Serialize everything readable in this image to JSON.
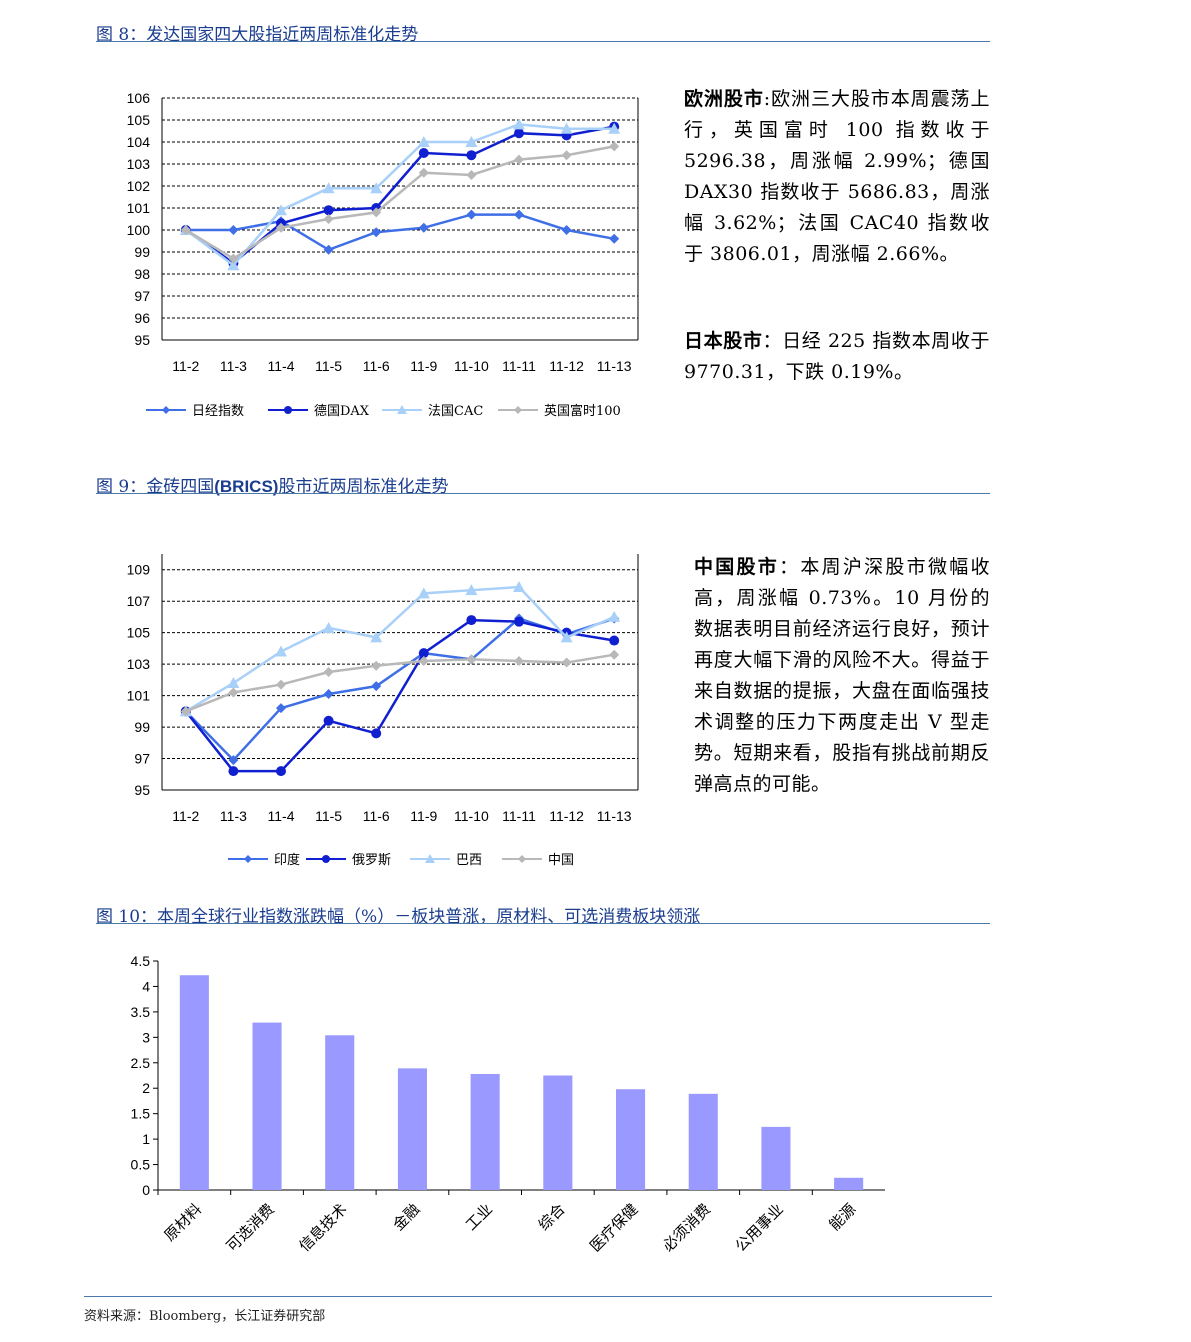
{
  "figures": {
    "fig8": {
      "title": "图 8：发达国家四大股指近两周标准化走势"
    },
    "fig9": {
      "title_prefix": "图 9：金砖四国",
      "title_bold": "(BRICS)",
      "title_suffix": "股市近两周标准化走势"
    },
    "fig10": {
      "title": "图 10：本周全球行业指数涨跌幅（%）－板块普涨，原材料、可选消费板块领涨"
    }
  },
  "side_text": {
    "europe_label": "欧洲股市",
    "europe_body": ":欧洲三大股市本周震荡上行，英国富时 100 指数收于 5296.38，周涨幅 2.99%；德国 DAX30 指数收于 5686.83，周涨幅 3.62%；法国 CAC40 指数收于 3806.01，周涨幅 2.66%。",
    "japan_label": "日本股市",
    "japan_body": "：日经 225 指数本周收于 9770.31，下跌 0.19%。",
    "china_label": "中国股市",
    "china_body": "：本周沪深股市微幅收高，周涨幅 0.73%。10 月份的数据表明目前经济运行良好，预计再度大幅下滑的风险不大。得益于来自数据的提振，大盘在面临强技术调整的压力下两度走出 V 型走势。短期来看，股指有挑战前期反弹高点的可能。"
  },
  "source": "资料来源：Bloomberg，长江证券研究部",
  "chart_data": [
    {
      "type": "line",
      "categories": [
        "11-2",
        "11-3",
        "11-4",
        "11-5",
        "11-6",
        "11-9",
        "11-10",
        "11-11",
        "11-12",
        "11-13"
      ],
      "ylim": [
        95,
        106
      ],
      "yticks": [
        95,
        96,
        97,
        98,
        99,
        100,
        101,
        102,
        103,
        104,
        105,
        106
      ],
      "series": [
        {
          "name": "日经指数",
          "marker": "diamond",
          "color": "#3f6fe6",
          "values": [
            100,
            100,
            100.4,
            99.1,
            99.9,
            100.1,
            100.7,
            100.7,
            100.0,
            99.6
          ]
        },
        {
          "name": "德国DAX",
          "marker": "circle",
          "color": "#1020d0",
          "values": [
            100,
            98.5,
            100.3,
            100.9,
            101.0,
            103.5,
            103.4,
            104.4,
            104.3,
            104.7
          ]
        },
        {
          "name": "法国CAC",
          "marker": "triangle",
          "color": "#a8d0f8",
          "values": [
            100,
            98.4,
            100.9,
            101.9,
            101.9,
            104.0,
            104.0,
            104.8,
            104.6,
            104.6
          ]
        },
        {
          "name": "英国富时100",
          "marker": "diamond",
          "color": "#b8b8b8",
          "values": [
            100,
            98.7,
            100.1,
            100.5,
            100.8,
            102.6,
            102.5,
            103.2,
            103.4,
            103.8
          ]
        }
      ]
    },
    {
      "type": "line",
      "categories": [
        "11-2",
        "11-3",
        "11-4",
        "11-5",
        "11-6",
        "11-9",
        "11-10",
        "11-11",
        "11-12",
        "11-13"
      ],
      "ylim": [
        95,
        110
      ],
      "yticks": [
        95,
        97,
        99,
        101,
        103,
        105,
        107,
        109
      ],
      "series": [
        {
          "name": "印度",
          "marker": "diamond",
          "color": "#3f6fe6",
          "values": [
            100,
            96.9,
            100.2,
            101.1,
            101.6,
            103.7,
            103.3,
            105.9,
            104.9,
            105.9
          ]
        },
        {
          "name": "俄罗斯",
          "marker": "circle",
          "color": "#1020d0",
          "values": [
            100,
            96.2,
            96.2,
            99.4,
            98.6,
            103.7,
            105.8,
            105.7,
            105.0,
            104.5
          ]
        },
        {
          "name": "巴西",
          "marker": "triangle",
          "color": "#a8d0f8",
          "values": [
            100,
            101.8,
            103.8,
            105.3,
            104.7,
            107.5,
            107.7,
            107.9,
            104.7,
            106.0
          ]
        },
        {
          "name": "中国",
          "marker": "diamond",
          "color": "#b8b8b8",
          "values": [
            100,
            101.2,
            101.7,
            102.5,
            102.9,
            103.2,
            103.3,
            103.2,
            103.1,
            103.6
          ]
        }
      ]
    },
    {
      "type": "bar",
      "categories": [
        "原材料",
        "可选消费",
        "信息技术",
        "金融",
        "工业",
        "综合",
        "医疗保健",
        "必须消费",
        "公用事业",
        "能源"
      ],
      "values": [
        4.22,
        3.29,
        3.04,
        2.39,
        2.28,
        2.25,
        1.98,
        1.89,
        1.24,
        0.24
      ],
      "ylim": [
        0,
        4.5
      ],
      "yticks": [
        0,
        0.5,
        1,
        1.5,
        2,
        2.5,
        3,
        3.5,
        4,
        4.5
      ],
      "color": "#9999ff"
    }
  ]
}
